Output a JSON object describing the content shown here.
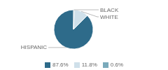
{
  "chart_data": {
    "type": "pie",
    "categories": [
      "HISPANIC",
      "WHITE",
      "BLACK"
    ],
    "values": [
      87.6,
      11.8,
      0.6
    ],
    "value_labels": [
      "87.6%",
      "11.8%",
      "0.6%"
    ],
    "colors": [
      "#2e6b8a",
      "#cfe0ea",
      "#7aaabb"
    ],
    "legend": "bottom"
  }
}
